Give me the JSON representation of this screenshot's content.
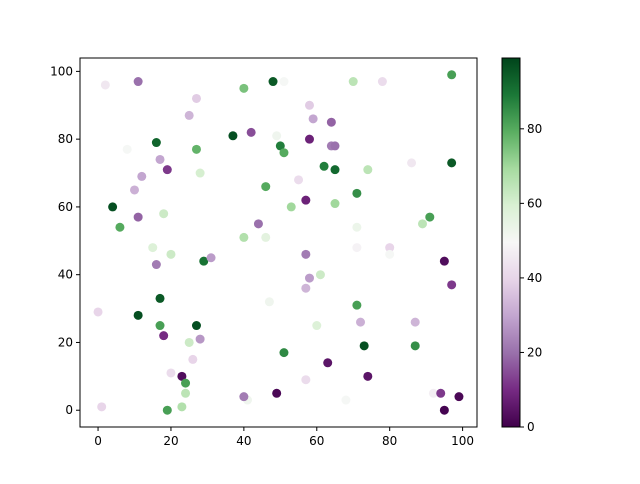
{
  "chart_data": {
    "type": "scatter",
    "colormap": "PRGn",
    "x": [
      2,
      11,
      27,
      25,
      40,
      48,
      51,
      70,
      78,
      97,
      58,
      59,
      64,
      37,
      42,
      49,
      16,
      8,
      27,
      50,
      51,
      58,
      64,
      65,
      17,
      19,
      12,
      28,
      62,
      65,
      74,
      86,
      97,
      55,
      10,
      46,
      71,
      4,
      53,
      57,
      65,
      18,
      11,
      91,
      89,
      44,
      6,
      71,
      40,
      46,
      15,
      20,
      71,
      80,
      80,
      57,
      16,
      29,
      31,
      95,
      97,
      58,
      61,
      57,
      17,
      47,
      71,
      0,
      11,
      60,
      72,
      87,
      17,
      27,
      18,
      28,
      25,
      51,
      73,
      87,
      26,
      63,
      20,
      23,
      74,
      24,
      57,
      24,
      68,
      41,
      40,
      49,
      92,
      94,
      99,
      95,
      1,
      19,
      23
    ],
    "values": [
      96,
      97,
      92,
      87,
      95,
      97,
      97,
      97,
      97,
      99,
      90,
      86,
      85,
      81,
      82,
      81,
      79,
      77,
      77,
      78,
      76,
      80,
      78,
      78,
      74,
      71,
      69,
      70,
      72,
      71,
      71,
      73,
      73,
      68,
      65,
      66,
      64,
      60,
      60,
      62,
      61,
      58,
      57,
      57,
      55,
      55,
      54,
      54,
      51,
      51,
      48,
      46,
      48,
      48,
      46,
      46,
      43,
      44,
      45,
      44,
      37,
      39,
      40,
      36,
      33,
      32,
      31,
      29,
      28,
      25,
      26,
      26,
      25,
      25,
      22,
      21,
      20,
      17,
      19,
      19,
      15,
      14,
      11,
      10,
      10,
      8,
      9,
      5,
      3,
      3,
      4,
      5,
      5,
      5,
      4,
      0,
      1,
      0,
      1
    ],
    "c": [
      45,
      20,
      38,
      33,
      75,
      95,
      50,
      65,
      42,
      82,
      38,
      30,
      18,
      97,
      15,
      52,
      93,
      50,
      78,
      88,
      80,
      8,
      22,
      20,
      30,
      12,
      30,
      60,
      88,
      92,
      65,
      45,
      95,
      42,
      32,
      80,
      85,
      97,
      70,
      8,
      70,
      62,
      18,
      82,
      65,
      20,
      80,
      53,
      67,
      56,
      58,
      62,
      48,
      40,
      50,
      22,
      22,
      90,
      28,
      3,
      12,
      28,
      62,
      33,
      95,
      52,
      82,
      40,
      97,
      58,
      32,
      33,
      82,
      97,
      10,
      27,
      62,
      86,
      97,
      85,
      40,
      5,
      42,
      3,
      5,
      82,
      42,
      65,
      50,
      52,
      22,
      2,
      47,
      12,
      2,
      1,
      40,
      82,
      67
    ],
    "xlim": [
      -4.95,
      103.95
    ],
    "ylim": [
      -4.95,
      103.95
    ],
    "xticks": [
      0,
      20,
      40,
      60,
      80,
      100
    ],
    "yticks": [
      0,
      20,
      40,
      60,
      80,
      100
    ],
    "clim": [
      0,
      99
    ],
    "cticks": [
      0,
      20,
      40,
      60,
      80
    ]
  }
}
